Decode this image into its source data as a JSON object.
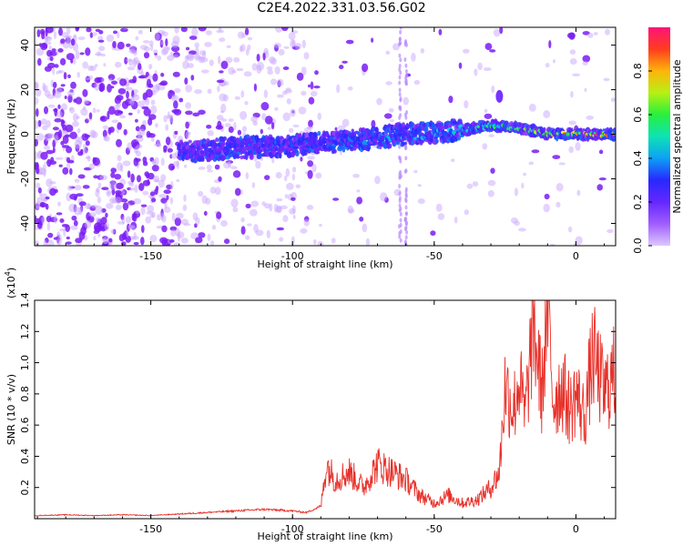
{
  "title": "C2E4.2022.331.03.56.G02",
  "colors": {
    "snr_line": "#e8312a",
    "heat_low": "#7b1fff",
    "heat_high": "#ff1744"
  },
  "chart_data": [
    {
      "type": "heatmap",
      "title": "C2E4.2022.331.03.56.G02",
      "xlabel": "Height of straight line (km)",
      "ylabel": "Frequency (Hz)",
      "xlim": [
        -191,
        14
      ],
      "ylim": [
        -50,
        48
      ],
      "xticks": [
        "-150",
        "-100",
        "-50",
        "0"
      ],
      "yticks": [
        "-40",
        "-20",
        "0",
        "20",
        "40"
      ],
      "colorbar": {
        "label": "Normalized spectral amplitude",
        "range": [
          0,
          1
        ],
        "ticks": [
          "0.0",
          "0.2",
          "0.4",
          "0.6",
          "0.8"
        ]
      },
      "ridge": {
        "x": [
          -140,
          -120,
          -100,
          -80,
          -60,
          -45,
          -30,
          -20,
          -10,
          0,
          14
        ],
        "frequency": [
          -8,
          -6,
          -5,
          -3,
          0,
          1,
          4,
          3,
          0,
          0,
          0
        ],
        "peak_amplitude": [
          0.25,
          0.3,
          0.3,
          0.4,
          0.45,
          0.5,
          0.6,
          0.7,
          0.9,
          0.95,
          0.95
        ]
      }
    },
    {
      "type": "line",
      "xlabel": "Height of straight line (km)",
      "ylabel": "SNR (10 * v/v)",
      "multiplier": "(x10",
      "multiplier_exp": "4",
      "multiplier_close": ")",
      "xlim": [
        -191,
        14
      ],
      "ylim": [
        0,
        1.4
      ],
      "xticks": [
        "-150",
        "-100",
        "-50",
        "0"
      ],
      "yticks": [
        "0.2",
        "0.4",
        "0.6",
        "0.8",
        "1.0",
        "1.2",
        "1.4"
      ],
      "series": [
        {
          "x": [
            -190,
            -180,
            -170,
            -160,
            -150,
            -140,
            -130,
            -120,
            -110,
            -100,
            -95,
            -90,
            -88,
            -85,
            -80,
            -75,
            -70,
            -65,
            -60,
            -55,
            -50,
            -45,
            -40,
            -35,
            -30,
            -27,
            -25,
            -22,
            -20,
            -18,
            -15,
            -12,
            -10,
            -8,
            -5,
            -2,
            0,
            3,
            6,
            10,
            14
          ],
          "y": [
            0.02,
            0.025,
            0.02,
            0.025,
            0.02,
            0.03,
            0.04,
            0.05,
            0.06,
            0.05,
            0.04,
            0.08,
            0.35,
            0.25,
            0.3,
            0.2,
            0.35,
            0.3,
            0.25,
            0.15,
            0.1,
            0.15,
            0.1,
            0.12,
            0.2,
            0.3,
            0.85,
            0.7,
            0.9,
            0.65,
            1.25,
            0.8,
            1.4,
            0.75,
            0.85,
            0.7,
            0.8,
            0.65,
            1.05,
            0.8,
            0.95
          ]
        }
      ]
    }
  ]
}
